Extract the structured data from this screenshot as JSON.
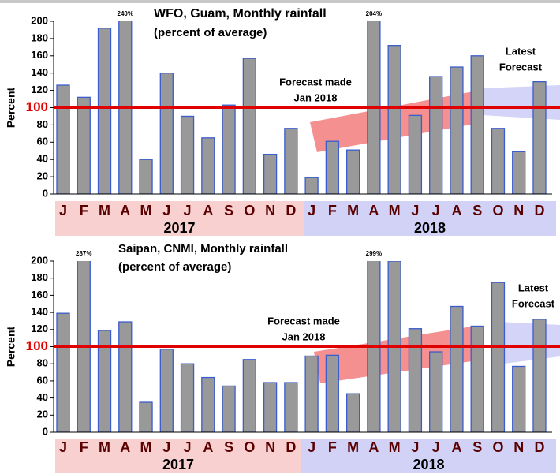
{
  "chart_data": [
    {
      "type": "bar",
      "title": "WFO, Guam, Monthly rainfall",
      "subtitle": "(percent of average)",
      "y_label": "Percent",
      "categories": [
        "J",
        "F",
        "M",
        "A",
        "M",
        "J",
        "J",
        "A",
        "S",
        "O",
        "N",
        "D",
        "J",
        "F",
        "M",
        "A",
        "M",
        "J",
        "J",
        "A",
        "S",
        "O",
        "N",
        "D"
      ],
      "group_labels": [
        "2017",
        "2018"
      ],
      "values": [
        126,
        112,
        192,
        240,
        40,
        140,
        90,
        65,
        103,
        157,
        46,
        76,
        19,
        61,
        51,
        204,
        172,
        91,
        136,
        147,
        160,
        76,
        49,
        130
      ],
      "value_labels": [
        null,
        null,
        null,
        "240%",
        null,
        null,
        null,
        null,
        null,
        null,
        null,
        null,
        null,
        null,
        null,
        "204%",
        null,
        null,
        null,
        null,
        null,
        null,
        null,
        null
      ],
      "color": "#999999",
      "reference_line": 100,
      "annotations": [
        [
          "Forecast made",
          "Jan 2018"
        ],
        [
          "Latest",
          "Forecast"
        ]
      ],
      "ylim": [
        0,
        200
      ],
      "yticks": [
        0,
        20,
        40,
        60,
        80,
        100,
        120,
        140,
        160,
        180,
        200
      ]
    },
    {
      "type": "bar",
      "title": "Saipan, CNMI, Monthly rainfall",
      "subtitle": "(percent of average)",
      "y_label": "Percent",
      "categories": [
        "J",
        "F",
        "M",
        "A",
        "M",
        "J",
        "J",
        "A",
        "S",
        "O",
        "N",
        "D",
        "J",
        "F",
        "M",
        "A",
        "M",
        "J",
        "J",
        "A",
        "S",
        "O",
        "N",
        "D"
      ],
      "group_labels": [
        "2017",
        "2018"
      ],
      "values": [
        139,
        287,
        119,
        129,
        35,
        97,
        80,
        64,
        54,
        85,
        58,
        58,
        89,
        90,
        45,
        299,
        200,
        121,
        94,
        147,
        124,
        175,
        77,
        132
      ],
      "value_labels": [
        null,
        "287%",
        null,
        null,
        null,
        null,
        null,
        null,
        null,
        null,
        null,
        null,
        null,
        null,
        null,
        "299%",
        null,
        null,
        null,
        null,
        null,
        null,
        null,
        null
      ],
      "color": "#999999",
      "reference_line": 100,
      "annotations": [
        [
          "Forecast made",
          "Jan 2018"
        ],
        [
          "Latest",
          "Forecast"
        ]
      ],
      "ylim": [
        0,
        200
      ],
      "yticks": [
        0,
        20,
        40,
        60,
        80,
        100,
        120,
        140,
        160,
        180,
        200
      ]
    }
  ]
}
